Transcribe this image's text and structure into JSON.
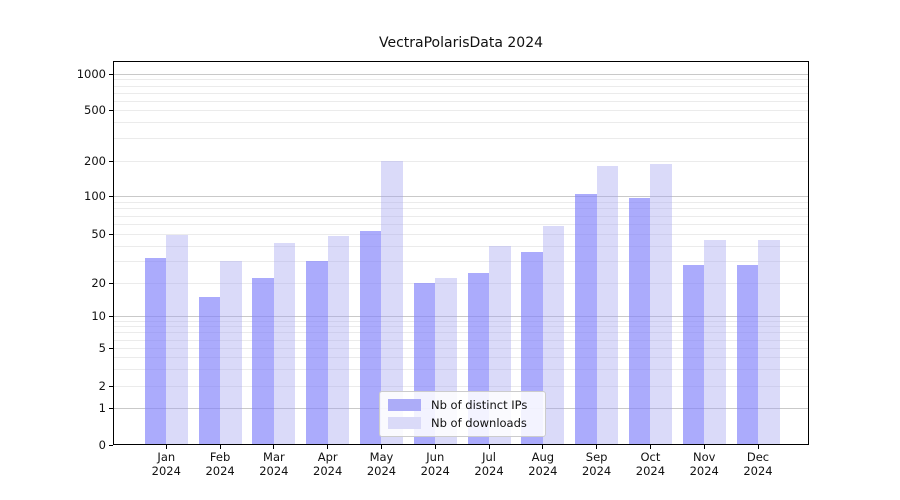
{
  "title": "VectraPolarisData 2024",
  "legend": {
    "items": [
      {
        "label": "Nb of distinct IPs"
      },
      {
        "label": "Nb of downloads"
      }
    ]
  },
  "chart_data": {
    "type": "bar",
    "title": "VectraPolarisData 2024",
    "categories": [
      "Jan 2024",
      "Feb 2024",
      "Mar 2024",
      "Apr 2024",
      "May 2024",
      "Jun 2024",
      "Jul 2024",
      "Aug 2024",
      "Sep 2024",
      "Oct 2024",
      "Nov 2024",
      "Dec 2024"
    ],
    "series": [
      {
        "name": "Nb of distinct IPs",
        "color": "rgba(127,127,250,0.66)",
        "color_flat": "#acacf8",
        "values": [
          32,
          15,
          22,
          30,
          53,
          20,
          24,
          36,
          105,
          97,
          28,
          28
        ]
      },
      {
        "name": "Nb of downloads",
        "color": "rgba(160,160,240,0.39)",
        "color_flat": "#dadaf8",
        "values": [
          49,
          30,
          42,
          48,
          200,
          22,
          40,
          58,
          180,
          190,
          45,
          45
        ]
      }
    ],
    "xlabel": "",
    "ylabel": "",
    "y_ticks": [
      0,
      1,
      2,
      5,
      10,
      20,
      50,
      100,
      200,
      500,
      1000
    ],
    "y_major_gridlines": [
      1,
      10,
      100,
      1000
    ],
    "ylim": [
      0,
      1000
    ],
    "y_scale": "log-like, compressed toward zero (ticks 0,1,2,5,10,20,50,100,200,500,1000)",
    "grid": true,
    "legend_position": "lower center"
  },
  "colors": {
    "background": "#ffffff",
    "axis": "#000000",
    "text": "#111111",
    "major_grid": "#c9c9c9",
    "minor_grid": "#ebebeb"
  }
}
